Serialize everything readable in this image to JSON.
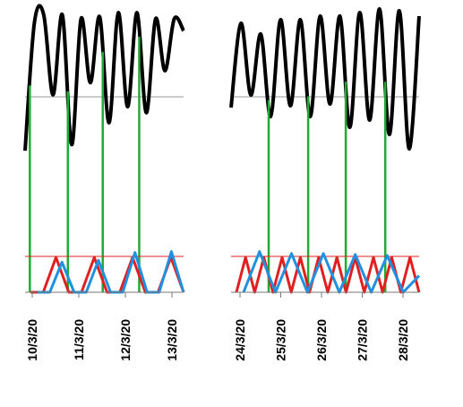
{
  "chart_data": [
    {
      "type": "line",
      "title": "",
      "xlabel": "",
      "ylabel": "",
      "grid": false,
      "legend": "none",
      "tick_labels": [
        "10/3/20",
        "11/3/20",
        "12/3/20",
        "13/3/20"
      ],
      "top_series": {
        "color": "#000000",
        "y": [
          0.3,
          0.94,
          0.98,
          0.58,
          0.98,
          0.33,
          0.96,
          0.64,
          0.97,
          0.44,
          0.99,
          0.52,
          0.99,
          0.49,
          0.96,
          0.7,
          0.96,
          0.9
        ]
      },
      "reference_line_level": 0.73,
      "lower_red": {
        "color": "#e02020",
        "y": [
          0.0,
          0.0,
          0.72,
          0.0,
          0.0,
          0.72,
          0.0,
          0.0,
          0.72,
          0.0,
          0.0,
          0.72,
          0.0
        ]
      },
      "lower_blue": {
        "color": "#2090e0",
        "y": [
          0.0,
          0.0,
          0.62,
          0.0,
          0.0,
          0.66,
          0.0,
          0.0,
          0.82,
          0.0,
          0.0,
          0.84,
          0.0
        ]
      },
      "lower_ref_level": 0.74,
      "green_markers": [
        0.03,
        0.27,
        0.49,
        0.72
      ]
    },
    {
      "type": "line",
      "title": "",
      "xlabel": "",
      "ylabel": "",
      "grid": false,
      "legend": "none",
      "tick_labels": [
        "24/3/20",
        "25/3/20",
        "26/3/20",
        "27/3/20",
        "28/3/20"
      ],
      "top_series": {
        "color": "#000000",
        "y": [
          0.45,
          0.92,
          0.52,
          0.86,
          0.4,
          0.94,
          0.46,
          0.94,
          0.4,
          0.96,
          0.47,
          0.96,
          0.34,
          0.98,
          0.38,
          1.0,
          0.3,
          0.99,
          0.22,
          0.96
        ]
      },
      "reference_line_level": 0.73,
      "lower_red": {
        "color": "#e02020",
        "y": [
          0.0,
          0.72,
          0.0,
          0.72,
          0.0,
          0.72,
          0.0,
          0.72,
          0.0,
          0.72,
          0.0,
          0.72,
          0.0,
          0.72,
          0.0,
          0.72,
          0.0,
          0.72,
          0.0,
          0.72,
          0.0
        ]
      },
      "lower_blue": {
        "color": "#2090e0",
        "y": [
          0.0,
          0.84,
          0.0,
          0.8,
          0.0,
          0.8,
          0.0,
          0.78,
          0.0,
          0.76,
          0.0,
          0.34
        ]
      },
      "lower_ref_level": 0.74,
      "green_markers": [
        0.2,
        0.41,
        0.61,
        0.82
      ]
    }
  ]
}
